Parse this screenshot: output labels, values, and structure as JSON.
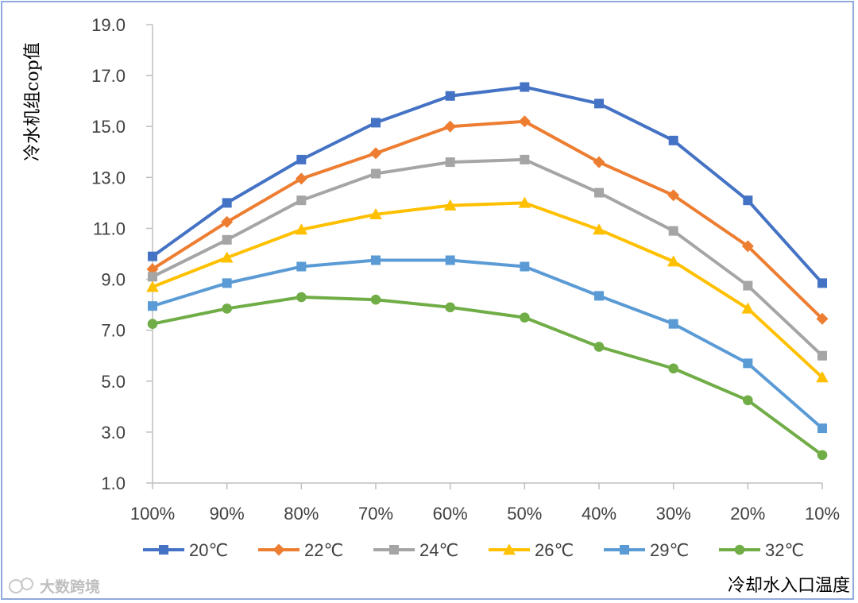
{
  "chart_data": {
    "type": "line",
    "title": "",
    "xlabel": "冷却水入口温度",
    "ylabel": "冷水机组cop值",
    "categories": [
      "100%",
      "90%",
      "80%",
      "70%",
      "60%",
      "50%",
      "40%",
      "30%",
      "20%",
      "10%"
    ],
    "ylim": [
      1.0,
      19.0
    ],
    "yticks": [
      "1.0",
      "3.0",
      "5.0",
      "7.0",
      "9.0",
      "11.0",
      "13.0",
      "15.0",
      "17.0",
      "19.0"
    ],
    "grid": false,
    "legend_position": "bottom",
    "series": [
      {
        "name": "20℃",
        "color": "#4472c4",
        "marker": "square",
        "values": [
          9.9,
          12.0,
          13.7,
          15.15,
          16.2,
          16.55,
          15.9,
          14.45,
          12.1,
          8.85
        ]
      },
      {
        "name": "22℃",
        "color": "#ed7d31",
        "marker": "diamond",
        "values": [
          9.4,
          11.25,
          12.95,
          13.95,
          15.0,
          15.2,
          13.6,
          12.3,
          10.3,
          7.45
        ]
      },
      {
        "name": "24℃",
        "color": "#a5a5a5",
        "marker": "square",
        "values": [
          9.1,
          10.55,
          12.1,
          13.15,
          13.6,
          13.7,
          12.4,
          10.9,
          8.75,
          6.0
        ]
      },
      {
        "name": "26℃",
        "color": "#ffc000",
        "marker": "triangle",
        "values": [
          8.7,
          9.85,
          10.95,
          11.55,
          11.9,
          12.0,
          10.95,
          9.7,
          7.85,
          5.15
        ]
      },
      {
        "name": "29℃",
        "color": "#5b9bd5",
        "marker": "square",
        "values": [
          7.95,
          8.85,
          9.5,
          9.75,
          9.75,
          9.5,
          8.35,
          7.25,
          5.7,
          3.15
        ]
      },
      {
        "name": "32℃",
        "color": "#70ad47",
        "marker": "circle",
        "values": [
          7.25,
          7.85,
          8.3,
          8.2,
          7.9,
          7.5,
          6.35,
          5.5,
          4.25,
          2.1
        ]
      }
    ]
  },
  "watermark": {
    "text": "大数跨境",
    "icon": "chat-bubble-icon"
  }
}
